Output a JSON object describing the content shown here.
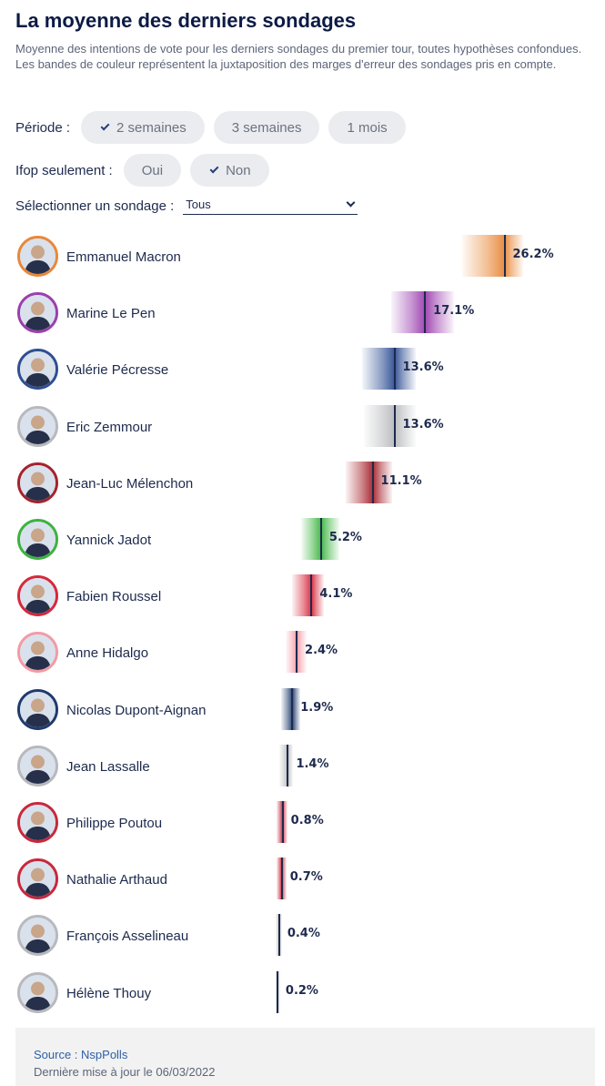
{
  "header": {
    "title": "La moyenne des derniers sondages",
    "subtitle": "Moyenne des intentions de vote pour les derniers sondages du premier tour, toutes hypothèses confondues. Les bandes de couleur représentent la juxtaposition des marges d'erreur des sondages pris en compte."
  },
  "filters": {
    "periode": {
      "label": "Période :",
      "options": [
        {
          "label": "2 semaines",
          "selected": true
        },
        {
          "label": "3 semaines",
          "selected": false
        },
        {
          "label": "1 mois",
          "selected": false
        }
      ]
    },
    "ifop": {
      "label": "Ifop seulement :",
      "options": [
        {
          "label": "Oui",
          "selected": false
        },
        {
          "label": "Non",
          "selected": true
        }
      ]
    },
    "sondage": {
      "label": "Sélectionner un sondage :",
      "selected": "Tous"
    }
  },
  "chart_data": {
    "type": "bar",
    "unit": "%",
    "x_range": [
      0,
      30
    ],
    "categories": [
      "Emmanuel Macron",
      "Marine Le Pen",
      "Valérie Pécresse",
      "Eric Zemmour",
      "Jean-Luc Mélenchon",
      "Yannick Jadot",
      "Fabien Roussel",
      "Anne Hidalgo",
      "Nicolas Dupont-Aignan",
      "Jean Lassalle",
      "Philippe Poutou",
      "Nathalie Arthaud",
      "François Asselineau",
      "Hélène Thouy"
    ],
    "values": [
      26.2,
      17.1,
      13.6,
      13.6,
      11.1,
      5.2,
      4.1,
      2.4,
      1.9,
      1.4,
      0.8,
      0.7,
      0.4,
      0.2
    ],
    "labels": [
      "26.2%",
      "17.1%",
      "13.6%",
      "13.6%",
      "11.1%",
      "5.2%",
      "4.1%",
      "2.4%",
      "1.9%",
      "1.4%",
      "0.8%",
      "0.7%",
      "0.4%",
      "0.2%"
    ],
    "margin_low": [
      21.4,
      13.2,
      9.9,
      10.1,
      8.0,
      2.9,
      1.9,
      1.1,
      0.6,
      0.4,
      0.1,
      0.1,
      0.0,
      0.0
    ],
    "margin_high": [
      28.3,
      20.4,
      16.0,
      16.0,
      13.3,
      7.3,
      5.5,
      3.5,
      2.8,
      2.0,
      1.4,
      1.3,
      0.7,
      0.5
    ],
    "colors": [
      "#e8883a",
      "#9b3fae",
      "#2f4f93",
      "#b8b9bd",
      "#a5232c",
      "#3cb33f",
      "#d7283c",
      "#f49aa4",
      "#1f3b6e",
      "#b8b9bd",
      "#c8283c",
      "#c8283c",
      "#b8b9bd",
      "#b8b9bd"
    ]
  },
  "avatars": [
    {
      "icon": "portrait-emmanuel-macron-icon",
      "ring": "#e8883a"
    },
    {
      "icon": "portrait-marine-le-pen-icon",
      "ring": "#9b3fae"
    },
    {
      "icon": "portrait-valerie-pecresse-icon",
      "ring": "#2f4f93"
    },
    {
      "icon": "portrait-eric-zemmour-icon",
      "ring": "#b8b9bd"
    },
    {
      "icon": "portrait-jean-luc-melenchon-icon",
      "ring": "#a5232c"
    },
    {
      "icon": "portrait-yannick-jadot-icon",
      "ring": "#3cb33f"
    },
    {
      "icon": "portrait-fabien-roussel-icon",
      "ring": "#d7283c"
    },
    {
      "icon": "portrait-anne-hidalgo-icon",
      "ring": "#f49aa4"
    },
    {
      "icon": "portrait-nicolas-dupont-aignan-icon",
      "ring": "#1f3b6e"
    },
    {
      "icon": "portrait-jean-lassalle-icon",
      "ring": "#b8b9bd"
    },
    {
      "icon": "portrait-philippe-poutou-icon",
      "ring": "#c8283c"
    },
    {
      "icon": "portrait-nathalie-arthaud-icon",
      "ring": "#c8283c"
    },
    {
      "icon": "portrait-francois-asselineau-icon",
      "ring": "#b8b9bd"
    },
    {
      "icon": "portrait-helene-thouy-icon",
      "ring": "#b8b9bd"
    }
  ],
  "footer": {
    "source": "Source : NspPolls",
    "updated": "Dernière mise à jour le 06/03/2022"
  }
}
